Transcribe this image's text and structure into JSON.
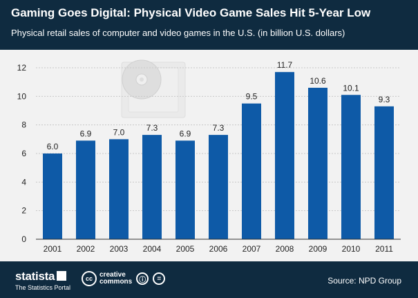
{
  "header": {
    "title": "Gaming Goes Digital: Physical Video Game Sales Hit 5-Year Low",
    "subtitle": "Physical retail sales of computer and video games in the U.S. (in billion U.S. dollars)"
  },
  "chart_data": {
    "type": "bar",
    "categories": [
      "2001",
      "2002",
      "2003",
      "2004",
      "2005",
      "2006",
      "2007",
      "2008",
      "2009",
      "2010",
      "2011"
    ],
    "values": [
      6.0,
      6.9,
      7.0,
      7.3,
      6.9,
      7.3,
      9.5,
      11.7,
      10.6,
      10.1,
      9.3
    ],
    "data_labels": [
      "6.0",
      "6.9",
      "7.0",
      "7.3",
      "6.9",
      "7.3",
      "9.5",
      "11.7",
      "10.6",
      "10.1",
      "9.3"
    ],
    "yticks": [
      "0",
      "2",
      "4",
      "6",
      "8",
      "10",
      "12"
    ],
    "ylim": [
      0,
      12
    ],
    "grid": true,
    "bar_color": "#0e5aa7",
    "background_color": "#f2f2f2",
    "xlabel": "",
    "ylabel": ""
  },
  "footer": {
    "brand_name": "statista",
    "brand_tagline": "The Statistics Portal",
    "cc_label": "cc",
    "cc_text_line1": "creative",
    "cc_text_line2": "commons",
    "cc_by_glyph": "ⓘ",
    "cc_nd_glyph": "=",
    "source": "Source: NPD Group"
  },
  "icons": {
    "decoration": "game-disc-case-icon",
    "brand": "statista-logo-icon",
    "license": "creative-commons-icon"
  },
  "colors": {
    "header_bg": "#0f2b40",
    "footer_bg": "#0f2b40",
    "text_light": "#ffffff"
  }
}
